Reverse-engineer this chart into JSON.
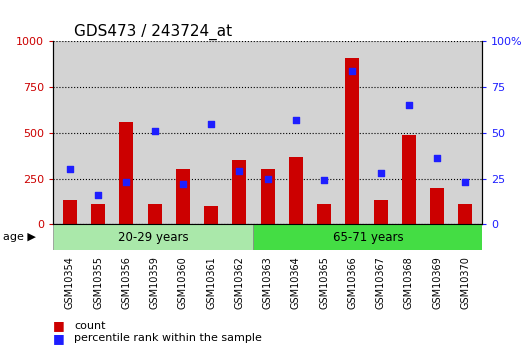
{
  "title": "GDS473 / 243724_at",
  "categories": [
    "GSM10354",
    "GSM10355",
    "GSM10356",
    "GSM10359",
    "GSM10360",
    "GSM10361",
    "GSM10362",
    "GSM10363",
    "GSM10364",
    "GSM10365",
    "GSM10366",
    "GSM10367",
    "GSM10368",
    "GSM10369",
    "GSM10370"
  ],
  "counts": [
    130,
    110,
    560,
    110,
    300,
    100,
    350,
    300,
    370,
    110,
    910,
    130,
    490,
    200,
    110
  ],
  "percentiles": [
    30,
    16,
    23,
    51,
    22,
    55,
    29,
    25,
    57,
    24,
    84,
    28,
    65,
    36,
    23
  ],
  "group1_label": "20-29 years",
  "group2_label": "65-71 years",
  "group1_count": 7,
  "group2_count": 8,
  "left_ylim": [
    0,
    1000
  ],
  "right_ylim": [
    0,
    100
  ],
  "left_yticks": [
    0,
    250,
    500,
    750,
    1000
  ],
  "right_yticks": [
    0,
    25,
    50,
    75,
    100
  ],
  "bar_color": "#cc0000",
  "dot_color": "#1e1eff",
  "bg_plot": "#d3d3d3",
  "bg_group1": "#aae8aa",
  "bg_group2": "#44dd44",
  "legend_count": "count",
  "legend_pct": "percentile rank within the sample",
  "age_label": "age"
}
